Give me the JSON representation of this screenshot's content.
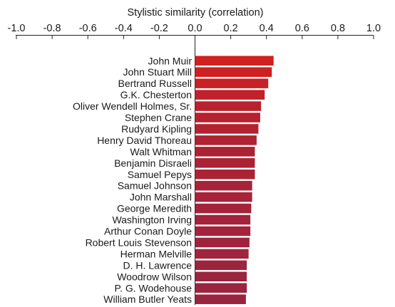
{
  "chart_data": {
    "type": "bar",
    "orientation": "horizontal",
    "xlabel": "Stylistic similarity (correlation)",
    "xlabel_position": "top",
    "xlim": [
      -1.0,
      1.0
    ],
    "xticks": [
      -1.0,
      -0.8,
      -0.6,
      -0.4,
      -0.2,
      0.0,
      0.2,
      0.4,
      0.6,
      0.8,
      1.0
    ],
    "xtick_labels": [
      "-1.0",
      "-0.8",
      "-0.6",
      "-0.4",
      "-0.2",
      "0.0",
      "0.2",
      "0.4",
      "0.6",
      "0.8",
      "1.0"
    ],
    "grid": false,
    "color_high": "#d21f1f",
    "color_low": "#992440",
    "categories": [
      "John Muir",
      "John Stuart Mill",
      "Bertrand Russell",
      "G.K. Chesterton",
      "Oliver Wendell Holmes, Sr.",
      "Stephen Crane",
      "Rudyard Kipling",
      "Henry David Thoreau",
      "Walt Whitman",
      "Benjamin Disraeli",
      "Samuel Pepys",
      "Samuel Johnson",
      "John Marshall",
      "George Meredith",
      "Washington Irving",
      "Arthur Conan Doyle",
      "Robert Louis Stevenson",
      "Herman Melville",
      "D. H. Lawrence",
      "Woodrow Wilson",
      "P. G. Wodehouse",
      "William Butler Yeats"
    ],
    "values": [
      0.44,
      0.43,
      0.41,
      0.39,
      0.37,
      0.365,
      0.355,
      0.345,
      0.335,
      0.335,
      0.335,
      0.32,
      0.32,
      0.315,
      0.31,
      0.31,
      0.305,
      0.3,
      0.29,
      0.29,
      0.29,
      0.285
    ]
  }
}
